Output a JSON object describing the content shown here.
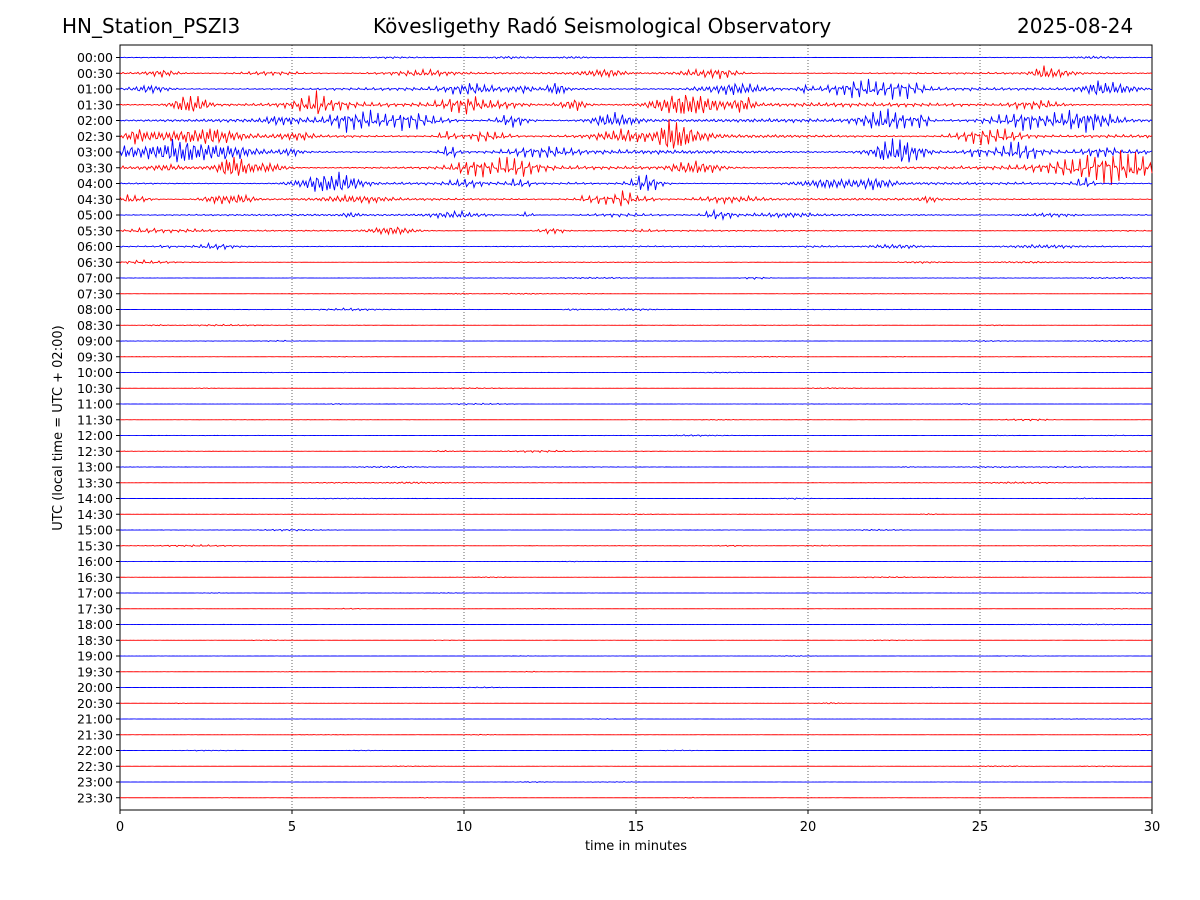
{
  "header": {
    "station": "HN_Station_PSZI3",
    "observatory": "Kövesligethy Radó Seismological Observatory",
    "date": "2025-08-24"
  },
  "chart_data": {
    "type": "line",
    "xlabel": "time in minutes",
    "ylabel": "UTC (local time = UTC + 02:00)",
    "xlim": [
      0,
      30
    ],
    "x_ticks": [
      "0",
      "5",
      "10",
      "15",
      "20",
      "25",
      "30"
    ],
    "grid": "vertical dotted at 5-minute intervals",
    "colors": {
      "even_rows": "#0000ff",
      "odd_rows": "#ff0000"
    },
    "rows": [
      "00:00",
      "00:30",
      "01:00",
      "01:30",
      "02:00",
      "02:30",
      "03:00",
      "03:30",
      "04:00",
      "04:30",
      "05:00",
      "05:30",
      "06:00",
      "06:30",
      "07:00",
      "07:30",
      "08:00",
      "08:30",
      "09:00",
      "09:30",
      "10:00",
      "10:30",
      "11:00",
      "11:30",
      "12:00",
      "12:30",
      "13:00",
      "13:30",
      "14:00",
      "14:30",
      "15:00",
      "15:30",
      "16:00",
      "16:30",
      "17:00",
      "17:30",
      "18:00",
      "18:30",
      "19:00",
      "19:30",
      "20:00",
      "20:30",
      "21:00",
      "21:30",
      "22:00",
      "22:30",
      "23:00",
      "23:30"
    ],
    "amplitudes": [
      0.8,
      2.2,
      3.8,
      4.5,
      4.5,
      4.2,
      4.8,
      4.2,
      3.2,
      2.6,
      2.2,
      1.6,
      1.3,
      0.9,
      0.6,
      0.5,
      0.6,
      0.5,
      0.5,
      0.4,
      0.3,
      0.3,
      0.4,
      0.4,
      0.4,
      0.5,
      0.6,
      0.5,
      0.4,
      0.4,
      0.4,
      0.5,
      0.35,
      0.3,
      0.3,
      0.25,
      0.25,
      0.25,
      0.25,
      0.25,
      0.25,
      0.25,
      0.25,
      0.25,
      0.25,
      0.25,
      0.25,
      0.25
    ]
  }
}
